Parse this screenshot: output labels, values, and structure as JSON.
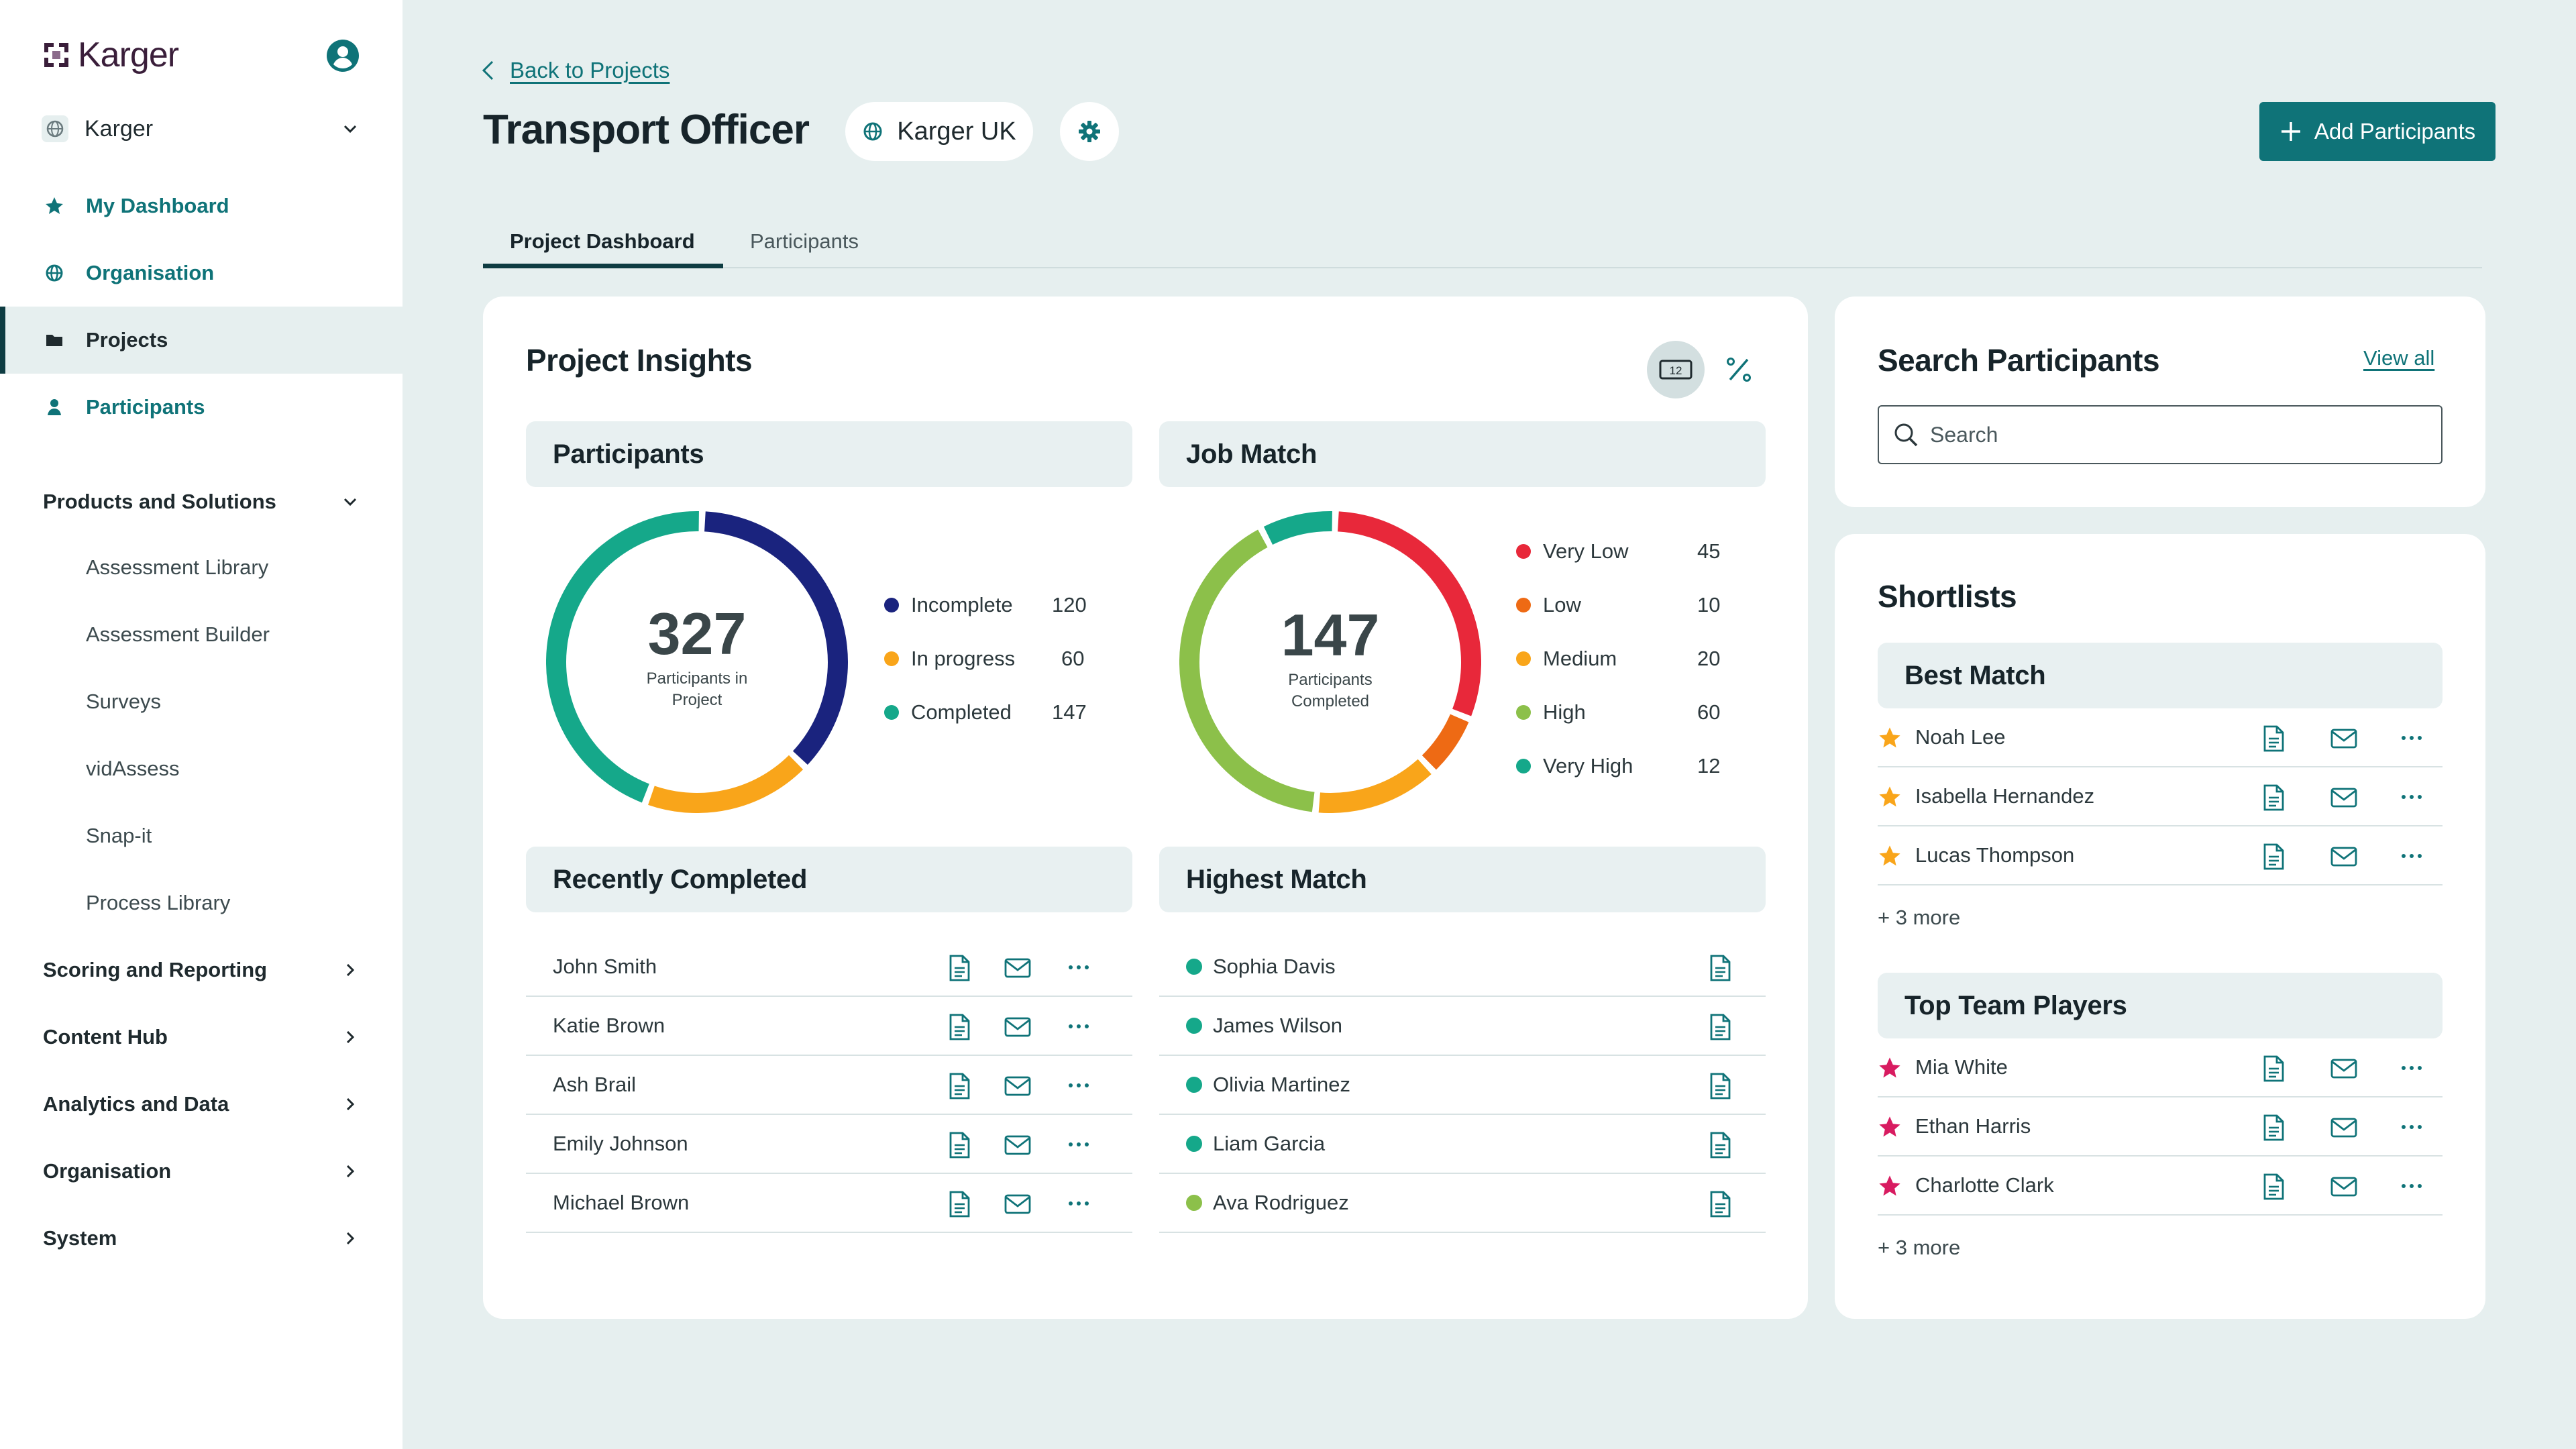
{
  "brand": {
    "name": "Karger"
  },
  "sidebar": {
    "org": "Karger",
    "nav": [
      {
        "label": "My Dashboard"
      },
      {
        "label": "Organisation"
      },
      {
        "label": "Projects",
        "active": true
      },
      {
        "label": "Participants"
      }
    ],
    "products_section": "Products and Solutions",
    "products": [
      "Assessment Library",
      "Assessment Builder",
      "Surveys",
      "vidAssess",
      "Snap-it",
      "Process Library"
    ],
    "sections": [
      "Scoring and Reporting",
      "Content Hub",
      "Analytics and Data",
      "Organisation",
      "System"
    ]
  },
  "header": {
    "back": "Back to Projects",
    "title": "Transport Officer",
    "region": "Karger UK",
    "add_button": "Add Participants"
  },
  "tabs": [
    "Project Dashboard",
    "Participants"
  ],
  "insights": {
    "title": "Project Insights",
    "toggle_number": "12",
    "participants": {
      "title": "Participants",
      "total": "327",
      "caption": [
        "Participants in",
        "Project"
      ],
      "legend": [
        {
          "label": "Incomplete",
          "value": "120",
          "color": "#1a237e"
        },
        {
          "label": "In progress",
          "value": "60",
          "color": "#f9a51a"
        },
        {
          "label": "Completed",
          "value": "147",
          "color": "#15a88a"
        }
      ]
    },
    "job_match": {
      "title": "Job Match",
      "total": "147",
      "caption": [
        "Participants",
        "Completed"
      ],
      "legend": [
        {
          "label": "Very Low",
          "value": "45",
          "color": "#e8283a"
        },
        {
          "label": "Low",
          "value": "10",
          "color": "#ee6a14"
        },
        {
          "label": "Medium",
          "value": "20",
          "color": "#f9a51a"
        },
        {
          "label": "High",
          "value": "60",
          "color": "#8cc04a"
        },
        {
          "label": "Very High",
          "value": "12",
          "color": "#15a88a"
        }
      ]
    },
    "recently_completed": {
      "title": "Recently Completed",
      "rows": [
        "John Smith",
        "Katie Brown",
        "Ash Brail",
        "Emily Johnson",
        "Michael Brown"
      ]
    },
    "highest_match": {
      "title": "Highest Match",
      "rows": [
        {
          "name": "Sophia Davis",
          "color": "#15a88a"
        },
        {
          "name": "James Wilson",
          "color": "#15a88a"
        },
        {
          "name": "Olivia Martinez",
          "color": "#15a88a"
        },
        {
          "name": "Liam Garcia",
          "color": "#15a88a"
        },
        {
          "name": "Ava Rodriguez",
          "color": "#8cc04a"
        }
      ]
    }
  },
  "search": {
    "title": "Search Participants",
    "view_all": "View all",
    "placeholder": "Search"
  },
  "shortlists": {
    "title": "Shortlists",
    "groups": [
      {
        "name": "Best Match",
        "star_color": "#f9a51a",
        "members": [
          "Noah Lee",
          "Isabella Hernandez",
          "Lucas Thompson"
        ],
        "more": "+ 3 more"
      },
      {
        "name": "Top Team Players",
        "star_color": "#d81b60",
        "members": [
          "Mia White",
          "Ethan Harris",
          "Charlotte Clark"
        ],
        "more": "+ 3 more"
      }
    ]
  }
}
